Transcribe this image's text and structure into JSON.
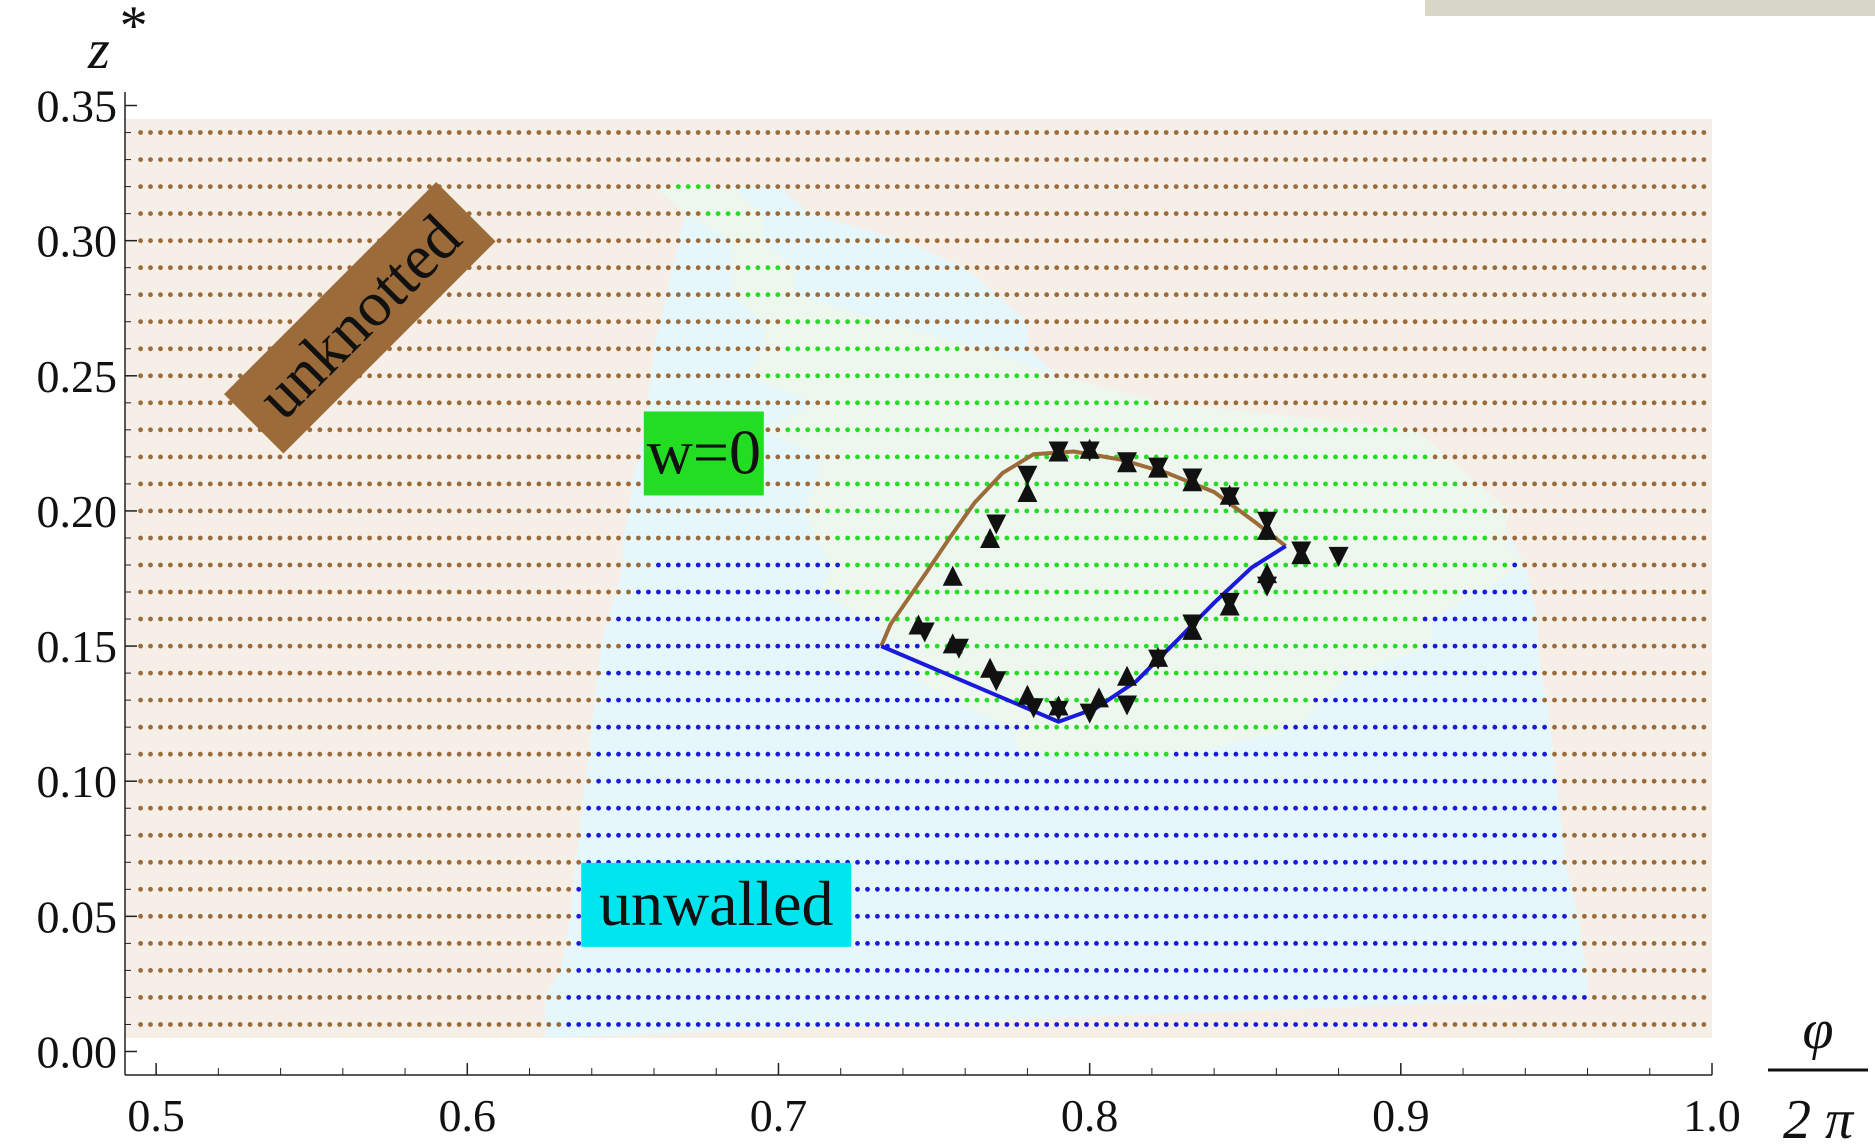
{
  "chart_data": {
    "type": "scatter",
    "title": "",
    "xlabel": "φ / 2π",
    "xlabel_parts": {
      "numerator": "φ",
      "denominator": "2 π"
    },
    "ylabel": "z*",
    "ylabel_parts": {
      "base": "z",
      "sup": "*"
    },
    "xlim": [
      0.49,
      1.0
    ],
    "ylim": [
      -0.005,
      0.355
    ],
    "xticks": [
      "0.5",
      "0.6",
      "0.7",
      "0.8",
      "0.9",
      "1.0"
    ],
    "yticks": [
      "0.00",
      "0.05",
      "0.10",
      "0.15",
      "0.20",
      "0.25",
      "0.30",
      "0.35"
    ],
    "grid": false,
    "colors": {
      "unknotted": "#9c6b3a",
      "w0": "#22dd22",
      "unwalled": "#1a1adc",
      "markers": "#111111",
      "unknotted_bg": "#f5efe8",
      "w0_bg": "#eef7ee",
      "unwalled_bg": "#e6f7fb"
    },
    "row_step": 0.01,
    "rows_z": [
      0.34,
      0.01
    ],
    "regions": {
      "unwalled_bounds": [
        [
          0.02,
          0.625,
          0.96
        ],
        [
          0.03,
          0.63,
          0.96
        ],
        [
          0.04,
          0.632,
          0.958
        ],
        [
          0.05,
          0.633,
          0.957
        ],
        [
          0.06,
          0.634,
          0.955
        ],
        [
          0.07,
          0.635,
          0.953
        ],
        [
          0.08,
          0.636,
          0.952
        ],
        [
          0.09,
          0.637,
          0.951
        ],
        [
          0.1,
          0.638,
          0.95
        ],
        [
          0.11,
          0.639,
          0.949
        ],
        [
          0.12,
          0.64,
          0.948
        ],
        [
          0.13,
          0.641,
          0.947
        ],
        [
          0.14,
          0.642,
          0.945
        ],
        [
          0.15,
          0.643,
          0.944
        ],
        [
          0.16,
          0.645,
          0.944
        ],
        [
          0.17,
          0.648,
          0.942
        ],
        [
          0.18,
          0.65,
          0.94
        ],
        [
          0.19,
          0.65,
          0.935
        ],
        [
          0.2,
          0.652,
          0.93
        ],
        [
          0.21,
          0.653,
          0.9
        ],
        [
          0.22,
          0.655,
          0.88
        ],
        [
          0.23,
          0.657,
          0.86
        ],
        [
          0.24,
          0.658,
          0.8
        ],
        [
          0.25,
          0.659,
          0.79
        ],
        [
          0.26,
          0.66,
          0.78
        ],
        [
          0.27,
          0.662,
          0.78
        ],
        [
          0.28,
          0.664,
          0.77
        ],
        [
          0.29,
          0.666,
          0.76
        ],
        [
          0.3,
          0.668,
          0.74
        ],
        [
          0.31,
          0.67,
          0.71
        ],
        [
          0.32,
          0.672,
          0.7
        ]
      ],
      "w0_rows": [
        [
          0.11,
          0.783,
          0.826
        ],
        [
          0.12,
          0.78,
          0.862
        ],
        [
          0.13,
          0.76,
          0.87
        ],
        [
          0.14,
          0.745,
          0.88
        ],
        [
          0.15,
          0.745,
          0.905
        ],
        [
          0.16,
          0.732,
          0.905
        ],
        [
          0.17,
          0.719,
          0.92
        ],
        [
          0.18,
          0.722,
          0.935
        ],
        [
          0.19,
          0.717,
          0.928
        ],
        [
          0.2,
          0.713,
          0.93
        ],
        [
          0.21,
          0.717,
          0.92
        ],
        [
          0.22,
          0.719,
          0.91
        ],
        [
          0.23,
          0.7,
          0.9
        ],
        [
          0.24,
          0.717,
          0.82
        ],
        [
          0.25,
          0.695,
          0.785
        ],
        [
          0.26,
          0.7,
          0.76
        ],
        [
          0.27,
          0.7,
          0.73
        ],
        [
          0.28,
          0.69,
          0.7
        ],
        [
          0.29,
          0.69,
          0.7
        ],
        [
          0.3,
          0.69,
          0.69
        ],
        [
          0.31,
          0.675,
          0.69
        ],
        [
          0.32,
          0.665,
          0.68
        ]
      ],
      "unwalled_rows": [
        [
          0.01,
          0.631,
          0.908
        ],
        [
          0.02,
          0.632,
          0.96
        ],
        [
          0.03,
          0.633,
          0.958
        ],
        [
          0.04,
          0.634,
          0.958
        ],
        [
          0.05,
          0.634,
          0.955
        ],
        [
          0.06,
          0.635,
          0.955
        ],
        [
          0.07,
          0.636,
          0.952
        ],
        [
          0.08,
          0.637,
          0.952
        ],
        [
          0.09,
          0.638,
          0.95
        ],
        [
          0.1,
          0.639,
          0.95
        ],
        [
          0.11,
          0.64,
          0.947
        ],
        [
          0.12,
          0.641,
          0.947
        ],
        [
          0.13,
          0.643,
          0.945
        ],
        [
          0.14,
          0.645,
          0.943
        ],
        [
          0.15,
          0.651,
          0.943
        ],
        [
          0.16,
          0.648,
          0.94
        ],
        [
          0.17,
          0.654,
          0.94
        ],
        [
          0.18,
          0.66,
          0.937
        ]
      ]
    },
    "boundary_lines": [
      {
        "color": "#9c6b3a",
        "points": [
          [
            0.733,
            0.15
          ],
          [
            0.736,
            0.158
          ],
          [
            0.742,
            0.168
          ],
          [
            0.748,
            0.178
          ],
          [
            0.755,
            0.19
          ],
          [
            0.763,
            0.203
          ],
          [
            0.772,
            0.214
          ],
          [
            0.782,
            0.221
          ],
          [
            0.795,
            0.222
          ],
          [
            0.81,
            0.219
          ],
          [
            0.825,
            0.214
          ],
          [
            0.84,
            0.207
          ],
          [
            0.853,
            0.196
          ],
          [
            0.863,
            0.187
          ]
        ]
      },
      {
        "color": "#1a1adc",
        "points": [
          [
            0.733,
            0.15
          ],
          [
            0.79,
            0.122
          ],
          [
            0.802,
            0.127
          ],
          [
            0.815,
            0.137
          ],
          [
            0.828,
            0.152
          ],
          [
            0.84,
            0.166
          ],
          [
            0.852,
            0.179
          ],
          [
            0.863,
            0.187
          ]
        ]
      }
    ],
    "markers_down": [
      [
        0.79,
        0.222
      ],
      [
        0.8,
        0.222
      ],
      [
        0.812,
        0.218
      ],
      [
        0.822,
        0.216
      ],
      [
        0.833,
        0.212
      ],
      [
        0.845,
        0.205
      ],
      [
        0.857,
        0.196
      ],
      [
        0.868,
        0.185
      ],
      [
        0.88,
        0.183
      ],
      [
        0.857,
        0.172
      ],
      [
        0.845,
        0.166
      ],
      [
        0.833,
        0.158
      ],
      [
        0.822,
        0.145
      ],
      [
        0.812,
        0.128
      ],
      [
        0.8,
        0.125
      ],
      [
        0.79,
        0.126
      ],
      [
        0.782,
        0.127
      ],
      [
        0.77,
        0.137
      ],
      [
        0.758,
        0.149
      ],
      [
        0.747,
        0.155
      ],
      [
        0.77,
        0.195
      ],
      [
        0.78,
        0.213
      ]
    ],
    "markers_up": [
      [
        0.745,
        0.158
      ],
      [
        0.756,
        0.151
      ],
      [
        0.768,
        0.142
      ],
      [
        0.78,
        0.132
      ],
      [
        0.79,
        0.128
      ],
      [
        0.803,
        0.131
      ],
      [
        0.812,
        0.139
      ],
      [
        0.822,
        0.146
      ],
      [
        0.833,
        0.156
      ],
      [
        0.845,
        0.165
      ],
      [
        0.857,
        0.177
      ],
      [
        0.868,
        0.184
      ],
      [
        0.857,
        0.193
      ],
      [
        0.845,
        0.206
      ],
      [
        0.833,
        0.211
      ],
      [
        0.822,
        0.216
      ],
      [
        0.812,
        0.218
      ],
      [
        0.8,
        0.223
      ],
      [
        0.79,
        0.222
      ],
      [
        0.78,
        0.207
      ],
      [
        0.768,
        0.19
      ],
      [
        0.756,
        0.176
      ]
    ],
    "annotations": [
      {
        "text": "unknotted",
        "x": 0.565,
        "y": 0.272,
        "bg": "#9c6b3a",
        "rotate": -45
      },
      {
        "text": "w=0",
        "x": 0.676,
        "y": 0.222,
        "bg": "#22dd22",
        "rotate": 0
      },
      {
        "text": "unwalled",
        "x": 0.68,
        "y": 0.055,
        "bg": "#00e5ee",
        "rotate": 0
      }
    ]
  }
}
